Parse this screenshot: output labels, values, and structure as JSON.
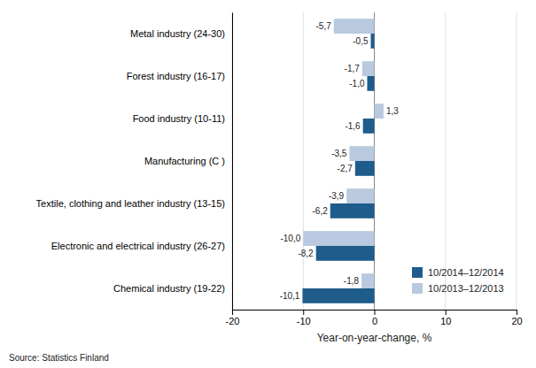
{
  "chart_data": {
    "type": "bar",
    "orientation": "horizontal",
    "categories": [
      "Metal industry (24-30)",
      "Forest industry (16-17)",
      "Food industry (10-11)",
      "Manufacturing (C )",
      "Textile, clothing and leather industry (13-15)",
      "Electronic and electrical industry (26-27)",
      "Chemical industry (19-22)"
    ],
    "series": [
      {
        "name": "10/2014–12/2014",
        "color": "#1F5C8B",
        "values": [
          -0.5,
          -1.0,
          -1.6,
          -2.7,
          -6.2,
          -8.2,
          -10.1
        ],
        "value_labels": [
          "-0,5",
          "-1,0",
          "-1,6",
          "-2,7",
          "-6,2",
          "-8,2",
          "-10,1"
        ]
      },
      {
        "name": "10/2013–12/2013",
        "color": "#B8C9E0",
        "values": [
          -5.7,
          -1.7,
          1.3,
          -3.5,
          -3.9,
          -10.0,
          -1.8
        ],
        "value_labels": [
          "-5,7",
          "-1,7",
          "1,3",
          "-3,5",
          "-3,9",
          "-10,0",
          "-1,8"
        ]
      }
    ],
    "xlabel": "Year-on-year-change, %",
    "xlim": [
      -20,
      20
    ],
    "xticks": [
      -20,
      -10,
      0,
      10,
      20
    ],
    "grid": true,
    "legend": "lower right",
    "data_labels": true,
    "source": "Source: Statistics Finland"
  }
}
